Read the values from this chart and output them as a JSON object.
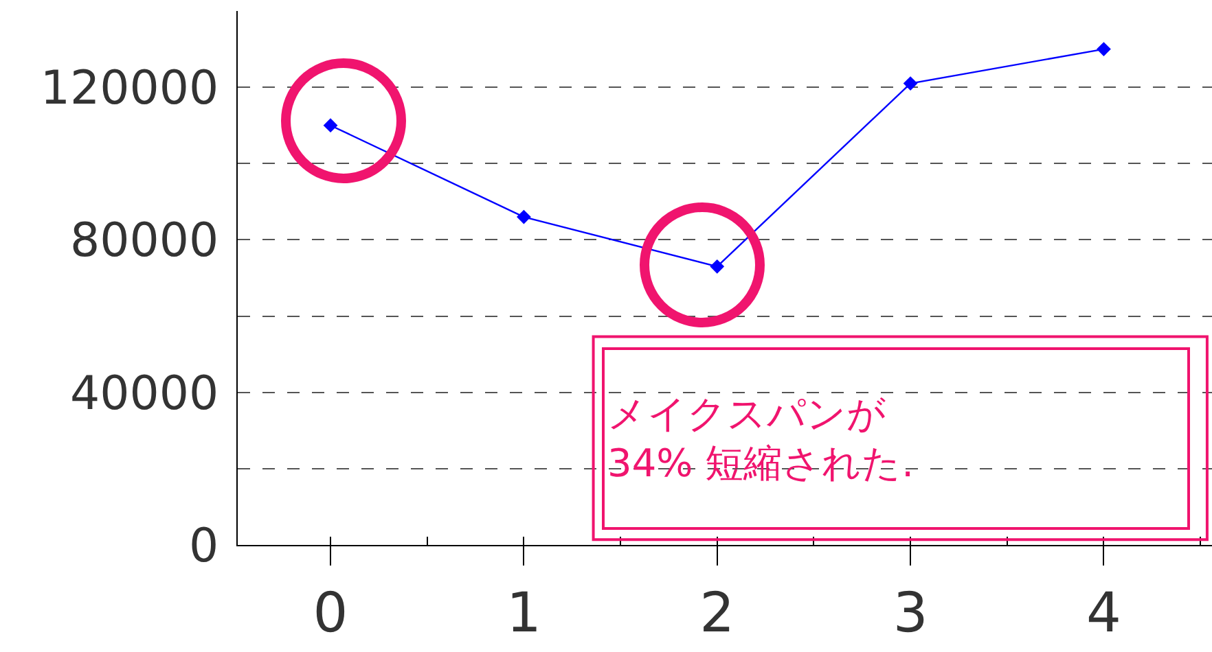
{
  "chart_data": {
    "type": "line",
    "x": [
      0,
      1,
      2,
      3,
      4
    ],
    "series": [
      {
        "color": "#0000ff",
        "values": [
          110000,
          86000,
          73000,
          121000,
          130000
        ]
      }
    ],
    "xlim": [
      -0.48,
      4.56
    ],
    "xticks": [
      0,
      1,
      2,
      3,
      4
    ],
    "ylim": [
      0,
      140000
    ],
    "yticks": [
      0,
      {
        "value": 20000,
        "label": null
      },
      40000,
      {
        "value": 60000,
        "label": null
      },
      80000,
      {
        "value": 100000,
        "label": null
      },
      120000
    ],
    "grid": "y",
    "marker": "diamond",
    "line_style": "solid",
    "annotations": [
      "メイクスパンが\n34% 短縮された."
    ]
  }
}
